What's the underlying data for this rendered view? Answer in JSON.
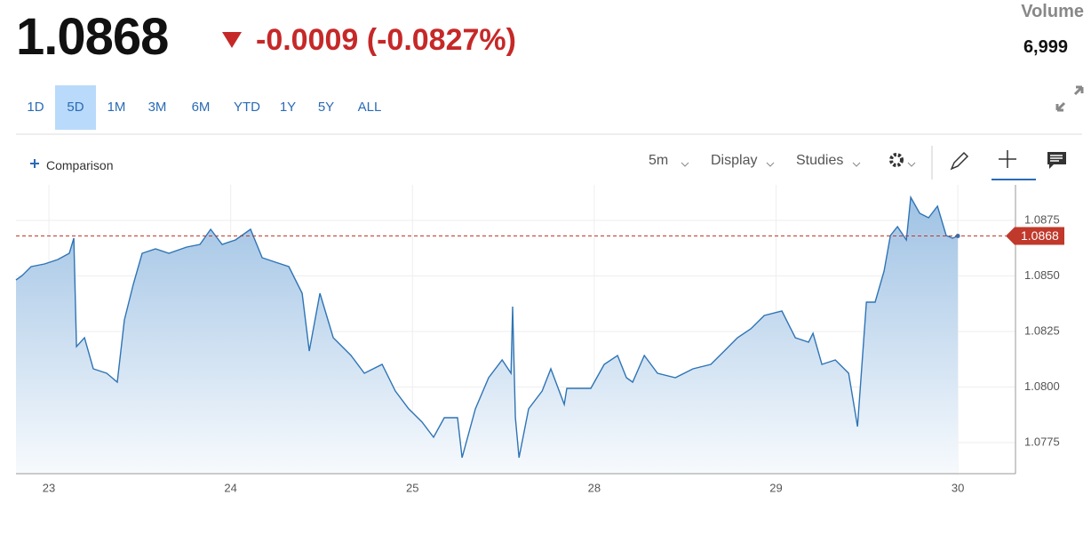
{
  "header": {
    "price": "1.0868",
    "change": "-0.0009 (-0.0827%)",
    "volume_label": "Volume",
    "volume": "6,999"
  },
  "ranges": [
    "1D",
    "5D",
    "1M",
    "3M",
    "6M",
    "YTD",
    "1Y",
    "5Y",
    "ALL"
  ],
  "selected_range": "5D",
  "toolbar": {
    "comparison": "Comparison",
    "interval": "5m",
    "display": "Display",
    "studies": "Studies"
  },
  "chart_data": {
    "type": "line",
    "x": [
      -0.181,
      -0.147,
      -0.098,
      -0.024,
      0.049,
      0.112,
      0.137,
      0.152,
      0.196,
      0.244,
      0.318,
      0.376,
      0.415,
      0.464,
      0.513,
      0.587,
      0.66,
      0.758,
      0.831,
      0.89,
      0.953,
      1.026,
      1.109,
      1.173,
      1.246,
      1.32,
      1.393,
      1.432,
      1.491,
      1.564,
      1.662,
      1.735,
      1.833,
      1.906,
      1.979,
      2.053,
      2.116,
      2.175,
      2.248,
      2.273,
      2.346,
      2.419,
      2.493,
      2.542,
      2.551,
      2.566,
      2.586,
      2.639,
      2.713,
      2.761,
      2.835,
      2.849,
      2.981,
      3.055,
      3.128,
      3.177,
      3.211,
      3.275,
      3.348,
      3.446,
      3.543,
      3.641,
      3.715,
      3.788,
      3.861,
      3.935,
      4.032,
      4.106,
      4.179,
      4.203,
      4.252,
      4.326,
      4.399,
      4.448,
      4.497,
      4.545,
      4.594,
      4.629,
      4.668,
      4.717,
      4.741,
      4.79,
      4.839,
      4.888,
      4.936,
      4.971,
      5.0
    ],
    "series": [
      {
        "color": "#2f74b5",
        "values": [
          1.08482,
          1.08502,
          1.08542,
          1.08554,
          1.08574,
          1.08602,
          1.0867,
          1.08182,
          1.08222,
          1.08082,
          1.08062,
          1.08022,
          1.08302,
          1.08462,
          1.08602,
          1.08622,
          1.08602,
          1.0863,
          1.08642,
          1.0871,
          1.08642,
          1.08662,
          1.0871,
          1.08582,
          1.08562,
          1.08542,
          1.08422,
          1.08162,
          1.08422,
          1.08222,
          1.08142,
          1.08062,
          1.08102,
          1.07982,
          1.07902,
          1.07842,
          1.07774,
          1.07862,
          1.07862,
          1.07682,
          1.07902,
          1.08042,
          1.08122,
          1.08062,
          1.08362,
          1.07862,
          1.07682,
          1.07902,
          1.07982,
          1.08082,
          1.07922,
          1.07994,
          1.07994,
          1.08102,
          1.08142,
          1.08042,
          1.08022,
          1.08142,
          1.08062,
          1.08042,
          1.08082,
          1.08102,
          1.08162,
          1.08222,
          1.08262,
          1.08322,
          1.08342,
          1.08222,
          1.08202,
          1.08242,
          1.08102,
          1.08122,
          1.08062,
          1.07822,
          1.08382,
          1.08382,
          1.08522,
          1.08682,
          1.08722,
          1.08662,
          1.08854,
          1.08782,
          1.08762,
          1.08814,
          1.08682,
          1.0867,
          1.0868
        ]
      }
    ],
    "xlim": [
      -0.181,
      5.317
    ],
    "xticks": [
      {
        "value": 0,
        "label": "23"
      },
      {
        "value": 1,
        "label": "24"
      },
      {
        "value": 2,
        "label": "25"
      },
      {
        "value": 3,
        "label": "28"
      },
      {
        "value": 4,
        "label": "29"
      },
      {
        "value": 5,
        "label": "30"
      }
    ],
    "ylim": [
      1.0761,
      1.0891
    ],
    "yticks": [
      1.0775,
      {
        "value": 1.08,
        "label": "1.0800"
      },
      1.0825,
      {
        "value": 1.085,
        "label": "1.0850"
      },
      1.0875
    ],
    "last": 1.0868,
    "last_color": "#c0392b",
    "grid": true
  }
}
